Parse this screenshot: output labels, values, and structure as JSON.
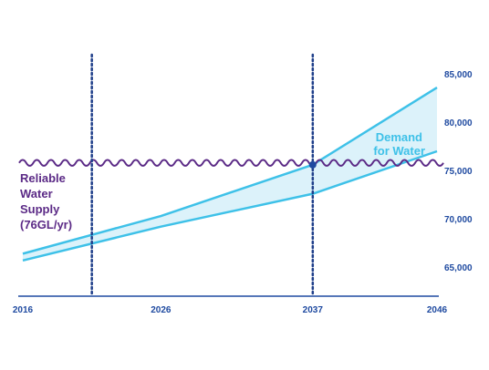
{
  "chart_data": {
    "type": "area",
    "x_range": [
      2016,
      2046
    ],
    "y_range": [
      62000,
      87000
    ],
    "x_ticks": [
      2016,
      2026,
      2037,
      2046
    ],
    "x_tick_labels": [
      "2016",
      "2026",
      "2037",
      "2046"
    ],
    "y_ticks": [
      65000,
      70000,
      75000,
      80000,
      85000
    ],
    "y_tick_labels": [
      "65,000",
      "70,000",
      "75,000",
      "80,000",
      "85,000"
    ],
    "series": [
      {
        "role": "demand_upper",
        "x": [
          2016,
          2026,
          2037,
          2046
        ],
        "y": [
          66400,
          70300,
          75600,
          83600
        ]
      },
      {
        "role": "demand_lower",
        "x": [
          2016,
          2026,
          2037,
          2046
        ],
        "y": [
          65700,
          69200,
          72600,
          77000
        ]
      },
      {
        "role": "supply",
        "x": [
          2016,
          2046
        ],
        "y": [
          75800,
          75800
        ]
      }
    ],
    "reference_lines_x": [
      2021,
      2037
    ],
    "intersection_marker": {
      "x": 2037,
      "y": 75600
    },
    "annotations": {
      "supply_label": [
        "Reliable",
        "Water",
        "Supply",
        "(76GL/yr)"
      ],
      "demand_label": [
        "Demand",
        "for Water"
      ]
    },
    "colors": {
      "demand": "#3ec1e8",
      "band_fill": "#dcf2fa",
      "supply": "#5b2a86",
      "axis": "#1f4aa0",
      "reference": "#1f3f8a",
      "demand_text": "#3ec1e8",
      "supply_text": "#5b2a86"
    }
  }
}
